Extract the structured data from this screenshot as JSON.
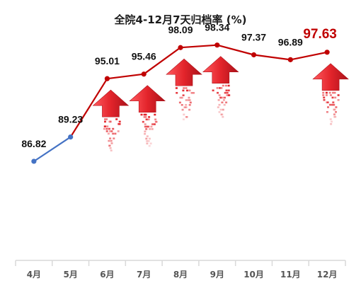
{
  "colors": {
    "blue_line": "#4472c4",
    "red_line": "#c00000",
    "arrow_fill": "#e3242b",
    "arrow_dark": "#b0141b",
    "highlight_label": "#c00000",
    "axis": "#d9d9d9"
  },
  "chart_data": {
    "type": "line",
    "title": "全院4-12月7天归档率 (%)",
    "categories": [
      "4月",
      "5月",
      "6月",
      "7月",
      "8月",
      "9月",
      "10月",
      "11月",
      "12月"
    ],
    "values": [
      86.82,
      89.23,
      95.01,
      95.46,
      98.09,
      98.34,
      97.37,
      96.89,
      97.63
    ],
    "value_labels": [
      "86.82",
      "89.23",
      "95.01",
      "95.46",
      "98.09",
      "98.34",
      "97.37",
      "96.89",
      "97.63"
    ],
    "blue_segment_end_index": 1,
    "up_arrow_indices": [
      2,
      3,
      4,
      5,
      8
    ],
    "highlight_index": 8,
    "ylim": [
      77,
      100
    ],
    "grid": false,
    "legend": "none",
    "xlabel": "",
    "ylabel": ""
  }
}
